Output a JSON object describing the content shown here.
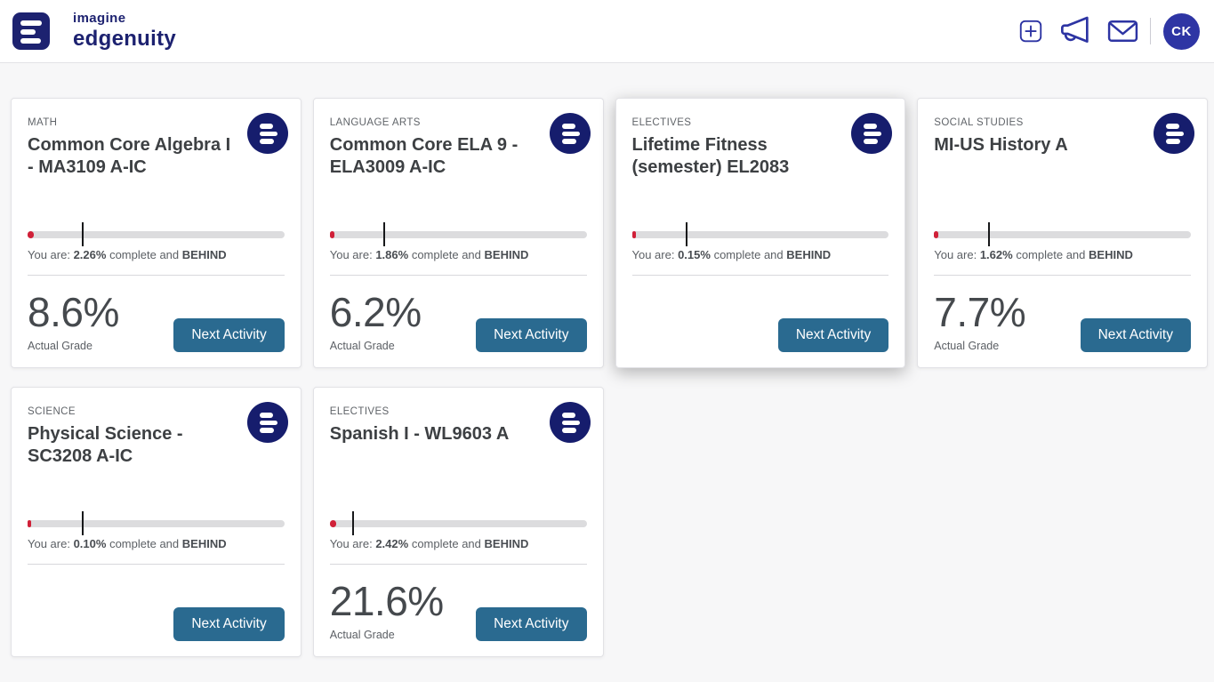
{
  "header": {
    "brand": {
      "line1": "imagine",
      "line2": "edgenuity"
    },
    "icons": [
      {
        "name": "add",
        "glyph": "plus-in-square"
      },
      {
        "name": "announcements",
        "glyph": "megaphone"
      },
      {
        "name": "messages",
        "glyph": "envelope"
      }
    ],
    "avatar_initials": "CK"
  },
  "labels": {
    "you_are": "You are:",
    "complete_and": "complete and",
    "actual_grade": "Actual Grade",
    "next_activity": "Next Activity"
  },
  "colors": {
    "brand_navy": "#1d2270",
    "icon_indigo": "#2d34a3",
    "avatar_blue": "#2e35a4",
    "progress_red": "#d02038",
    "progress_track": "#dcdcde",
    "button_blue": "#2a6a90",
    "page_bg": "#f7f7f8"
  },
  "courses": [
    {
      "subject": "MATH",
      "title": "Common Core Algebra I - MA3109 A-IC",
      "percent_complete": "2.26%",
      "complete_value": 2.26,
      "target_value": 21,
      "status": "BEHIND",
      "grade": "8.6%"
    },
    {
      "subject": "LANGUAGE ARTS",
      "title": "Common Core ELA 9 - ELA3009 A-IC",
      "percent_complete": "1.86%",
      "complete_value": 1.86,
      "target_value": 21,
      "status": "BEHIND",
      "grade": "6.2%"
    },
    {
      "subject": "ELECTIVES",
      "title": "Lifetime Fitness (semester) EL2083",
      "percent_complete": "0.15%",
      "complete_value": 0.15,
      "target_value": 21,
      "status": "BEHIND",
      "grade": null
    },
    {
      "subject": "SOCIAL STUDIES",
      "title": "MI-US History A",
      "percent_complete": "1.62%",
      "complete_value": 1.62,
      "target_value": 21,
      "status": "BEHIND",
      "grade": "7.7%"
    },
    {
      "subject": "SCIENCE",
      "title": "Physical Science - SC3208 A-IC",
      "percent_complete": "0.10%",
      "complete_value": 0.1,
      "target_value": 21,
      "status": "BEHIND",
      "grade": null
    },
    {
      "subject": "ELECTIVES",
      "title": "Spanish I - WL9603 A",
      "percent_complete": "2.42%",
      "complete_value": 2.42,
      "target_value": 8.7,
      "status": "BEHIND",
      "grade": "21.6%"
    }
  ]
}
